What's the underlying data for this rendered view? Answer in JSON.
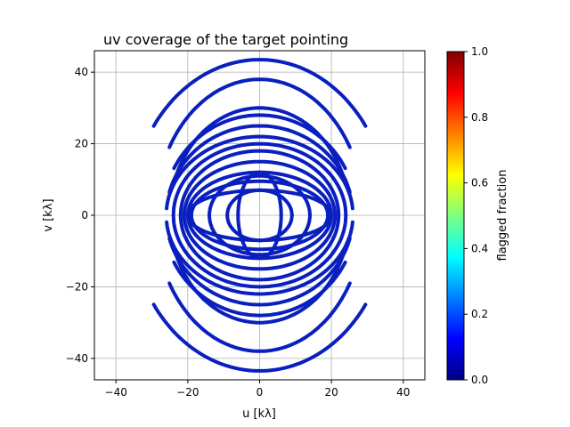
{
  "chart_data": {
    "type": "scatter",
    "title": "uv coverage of the target pointing",
    "xlabel": "u [kλ]",
    "ylabel": "v [kλ]",
    "xlim": [
      -46,
      46
    ],
    "ylim": [
      -46,
      46
    ],
    "xticks": [
      -40,
      -20,
      0,
      20,
      40
    ],
    "yticks": [
      -40,
      -20,
      0,
      20,
      40
    ],
    "grid": true,
    "colormap": "jet",
    "colorbar": {
      "label": "flagged fraction",
      "range": [
        0.0,
        1.0
      ],
      "ticks": [
        0.0,
        0.2,
        0.4,
        0.6,
        0.8,
        1.0
      ],
      "tick_labels": [
        "0.0",
        "0.2",
        "0.4",
        "0.6",
        "0.8",
        "1.0"
      ],
      "stops": [
        "#00007f",
        "#0000ff",
        "#007fff",
        "#00ffff",
        "#7fff7f",
        "#ffff00",
        "#ff7f00",
        "#ff0000",
        "#7f0000"
      ]
    },
    "point_color_dominant": "#0a1fbf",
    "tracks": [
      {
        "a": 36,
        "b": 43.5,
        "theta_range": [
          35,
          145
        ],
        "value": 0.1
      },
      {
        "a": 29,
        "b": 38.0,
        "theta_range": [
          30,
          150
        ],
        "value": 0.1
      },
      {
        "a": 25,
        "b": 30.0,
        "theta_range": [
          22,
          158
        ],
        "value": 0.1
      },
      {
        "a": 27,
        "b": 28.0,
        "theta_range": [
          28,
          152
        ],
        "value": 0.1
      },
      {
        "a": 26,
        "b": 25.0,
        "theta_range": [
          15,
          165
        ],
        "value": 0.1
      },
      {
        "a": 26,
        "b": 22.0,
        "theta_range": [
          5,
          175
        ],
        "value": 0.1
      },
      {
        "a": 24,
        "b": 20.0,
        "theta_range": [
          0,
          180
        ],
        "value": 0.1
      },
      {
        "a": 22,
        "b": 18.0,
        "theta_range": [
          0,
          180
        ],
        "value": 0.1
      },
      {
        "a": 21,
        "b": 15.0,
        "theta_range": [
          0,
          180
        ],
        "value": 0.1
      },
      {
        "a": 20,
        "b": 12.0,
        "theta_range": [
          0,
          180
        ],
        "value": 0.1
      },
      {
        "a": 19,
        "b": 9.5,
        "theta_range": [
          0,
          180
        ],
        "value": 0.1
      },
      {
        "a": 20,
        "b": 7.0,
        "theta_range": [
          0,
          180
        ],
        "value": 0.1
      },
      {
        "a": 14,
        "b": 11.0,
        "theta_range": [
          0,
          180
        ],
        "value": 0.1
      },
      {
        "a": 9,
        "b": 7.0,
        "theta_range": [
          0,
          180
        ],
        "value": 0.1
      },
      {
        "a": 6,
        "b": 12.0,
        "theta_range": [
          0,
          180
        ],
        "value": 0.1
      }
    ]
  }
}
